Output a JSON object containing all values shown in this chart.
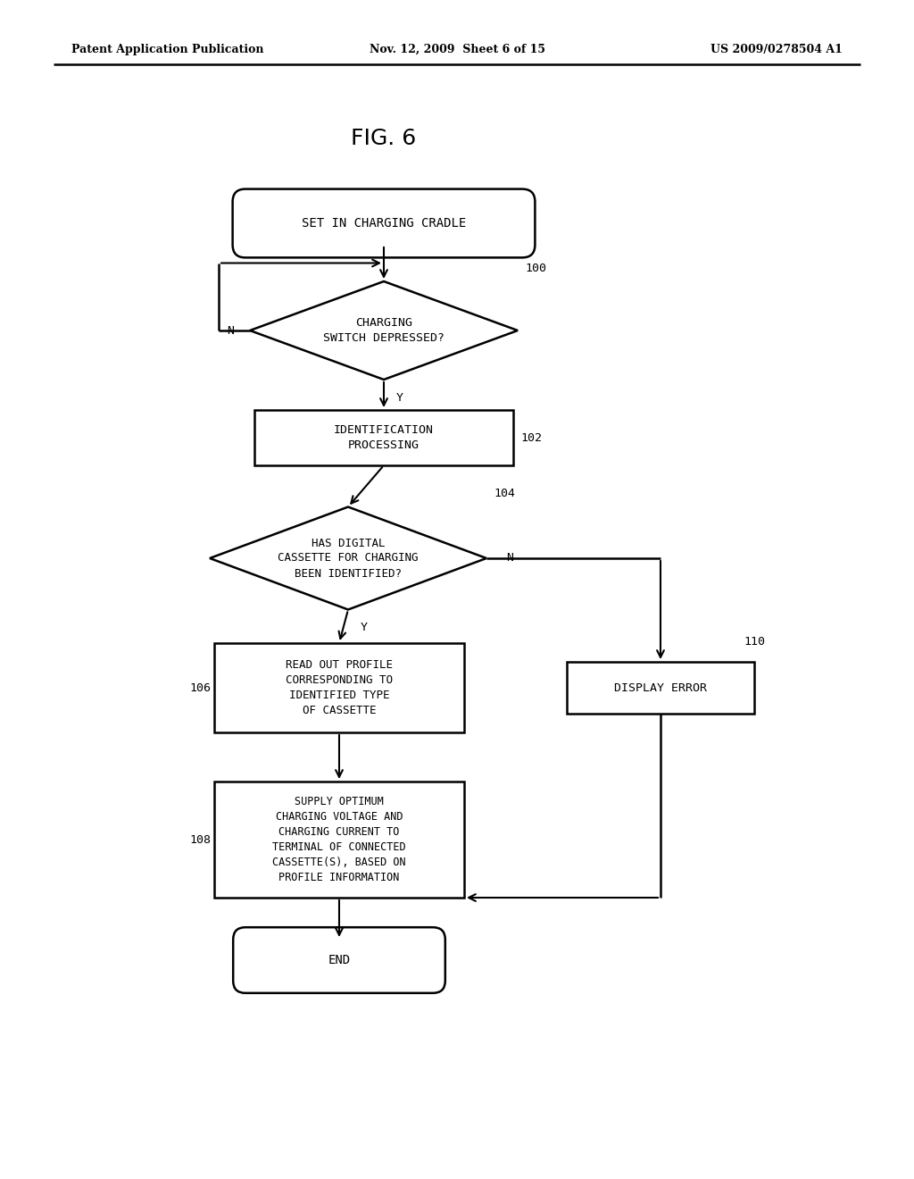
{
  "title": "FIG. 6",
  "header_left": "Patent Application Publication",
  "header_center": "Nov. 12, 2009  Sheet 6 of 15",
  "header_right": "US 2009/0278504 A1",
  "background_color": "#ffffff",
  "nodes": {
    "start": {
      "label": "SET IN CHARGING CRADLE"
    },
    "d100": {
      "label": "CHARGING\nSWITCH DEPRESSED?",
      "ref": "100"
    },
    "b102": {
      "label": "IDENTIFICATION\nPROCESSING",
      "ref": "102"
    },
    "d104": {
      "label": "HAS DIGITAL\nCASSETTE FOR CHARGING\nBEEN IDENTIFIED?",
      "ref": "104"
    },
    "b106": {
      "label": "READ OUT PROFILE\nCORRESPONDING TO\nIDENTIFIED TYPE\nOF CASSETTE",
      "ref": "106"
    },
    "b108": {
      "label": "SUPPLY OPTIMUM\nCHARGING VOLTAGE AND\nCHARGING CURRENT TO\nTERMINAL OF CONNECTED\nCASSETTE(S), BASED ON\nPROFILE INFORMATION",
      "ref": "108"
    },
    "b110": {
      "label": "DISPLAY ERROR",
      "ref": "110"
    },
    "end": {
      "label": "END"
    }
  }
}
